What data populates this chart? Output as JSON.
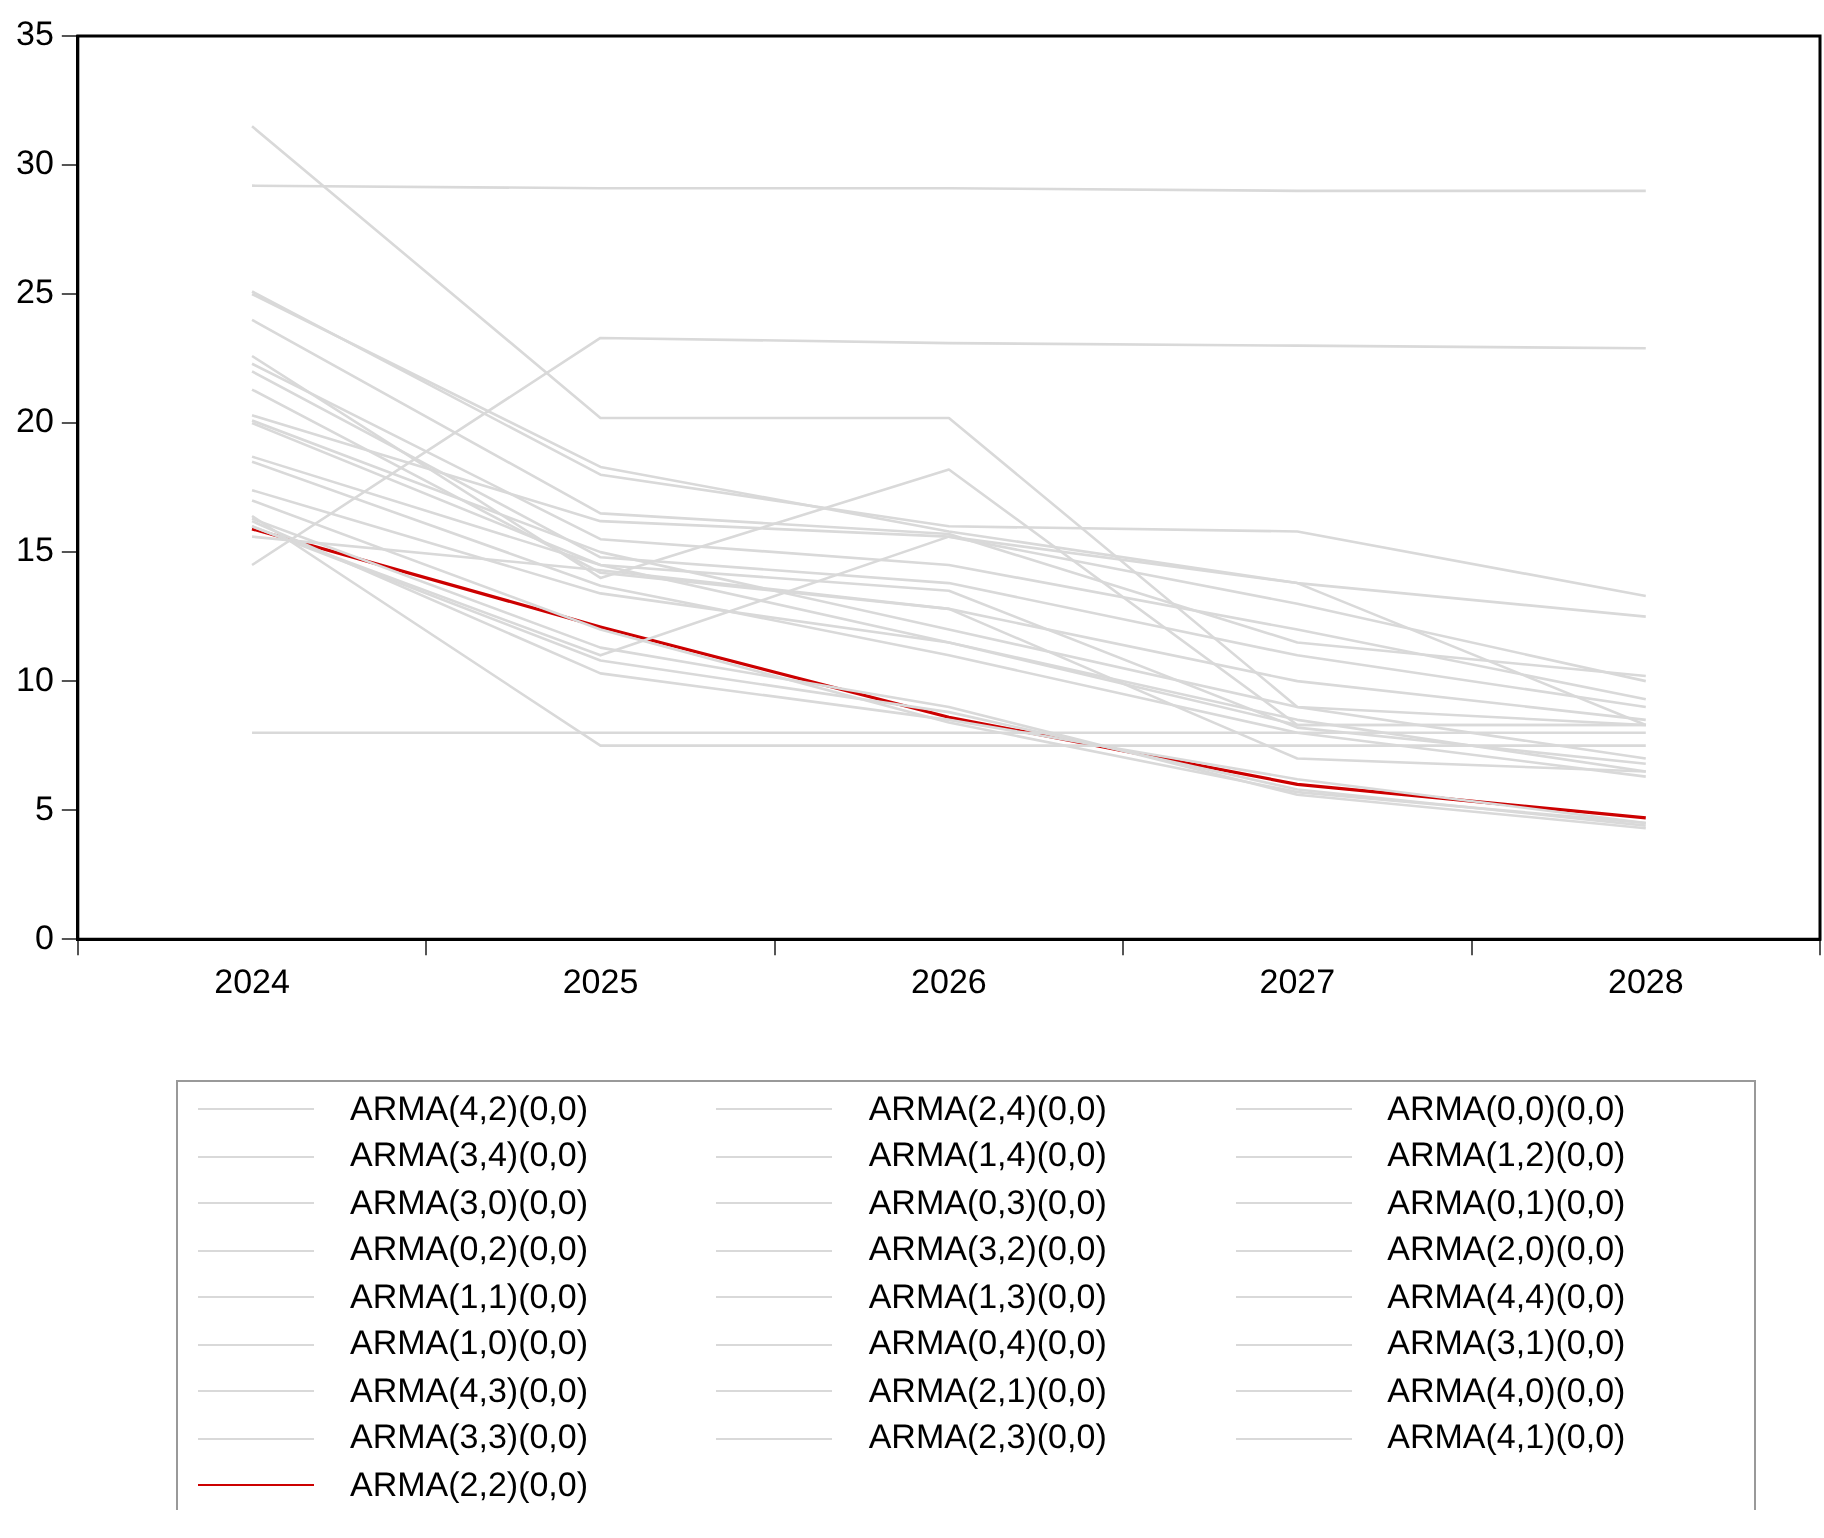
{
  "chart_data": {
    "type": "line",
    "categories": [
      "2024",
      "2025",
      "2026",
      "2027",
      "2028"
    ],
    "ylim": [
      0,
      35
    ],
    "yticks": [
      0,
      5,
      10,
      15,
      20,
      25,
      30,
      35
    ],
    "grid": false,
    "legend": "bottom",
    "marker": "none",
    "line_style": "solid",
    "series": [
      {
        "name": "ARMA(4,2)(0,0)",
        "color": "#d9d9d9",
        "values": [
          31.5,
          20.2,
          20.2,
          9.0,
          8.3
        ]
      },
      {
        "name": "ARMA(2,4)(0,0)",
        "color": "#d9d9d9",
        "values": [
          29.2,
          29.1,
          29.1,
          29.0,
          29.0
        ]
      },
      {
        "name": "ARMA(0,0)(0,0)",
        "color": "#d9d9d9",
        "values": [
          8.0,
          8.0,
          8.0,
          8.0,
          8.0
        ]
      },
      {
        "name": "ARMA(3,4)(0,0)",
        "color": "#d9d9d9",
        "values": [
          14.5,
          23.3,
          23.1,
          23.0,
          22.9
        ]
      },
      {
        "name": "ARMA(1,4)(0,0)",
        "color": "#d9d9d9",
        "values": [
          16.4,
          7.5,
          7.5,
          7.5,
          7.5
        ]
      },
      {
        "name": "ARMA(1,2)(0,0)",
        "color": "#d9d9d9",
        "values": [
          25.0,
          18.3,
          15.8,
          13.8,
          12.5
        ]
      },
      {
        "name": "ARMA(3,0)(0,0)",
        "color": "#d9d9d9",
        "values": [
          25.1,
          18.0,
          16.0,
          15.8,
          13.3
        ]
      },
      {
        "name": "ARMA(0,3)(0,0)",
        "color": "#d9d9d9",
        "values": [
          24.0,
          16.5,
          15.7,
          11.5,
          10.2
        ]
      },
      {
        "name": "ARMA(0,1)(0,0)",
        "color": "#d9d9d9",
        "values": [
          22.6,
          14.0,
          18.2,
          8.3,
          8.3
        ]
      },
      {
        "name": "ARMA(0,2)(0,0)",
        "color": "#d9d9d9",
        "values": [
          22.3,
          15.5,
          14.5,
          12.0,
          9.3
        ]
      },
      {
        "name": "ARMA(3,2)(0,0)",
        "color": "#d9d9d9",
        "values": [
          22.0,
          14.8,
          13.8,
          11.0,
          9.0
        ]
      },
      {
        "name": "ARMA(2,0)(0,0)",
        "color": "#d9d9d9",
        "values": [
          21.3,
          14.2,
          12.8,
          10.0,
          8.5
        ]
      },
      {
        "name": "ARMA(1,1)(0,0)",
        "color": "#d9d9d9",
        "values": [
          20.3,
          16.2,
          15.6,
          13.8,
          8.3
        ]
      },
      {
        "name": "ARMA(1,3)(0,0)",
        "color": "#d9d9d9",
        "values": [
          20.1,
          15.0,
          12.0,
          9.0,
          7.0
        ]
      },
      {
        "name": "ARMA(4,4)(0,0)",
        "color": "#d9d9d9",
        "values": [
          18.7,
          14.5,
          11.5,
          8.5,
          6.5
        ]
      },
      {
        "name": "ARMA(1,0)(0,0)",
        "color": "#d9d9d9",
        "values": [
          18.5,
          13.7,
          11.0,
          8.0,
          6.3
        ]
      },
      {
        "name": "ARMA(0,4)(0,0)",
        "color": "#d9d9d9",
        "values": [
          17.4,
          13.4,
          11.5,
          8.3,
          8.3
        ]
      },
      {
        "name": "ARMA(3,1)(0,0)",
        "color": "#d9d9d9",
        "values": [
          16.0,
          11.0,
          15.6,
          13.0,
          10.0
        ]
      },
      {
        "name": "ARMA(4,3)(0,0)",
        "color": "#d9d9d9",
        "values": [
          16.2,
          10.3,
          8.5,
          6.2,
          4.5
        ]
      },
      {
        "name": "ARMA(2,1)(0,0)",
        "color": "#d9d9d9",
        "values": [
          16.0,
          10.8,
          8.8,
          5.8,
          4.4
        ]
      },
      {
        "name": "ARMA(4,0)(0,0)",
        "color": "#d9d9d9",
        "values": [
          16.3,
          11.3,
          9.0,
          5.6,
          4.3
        ]
      },
      {
        "name": "ARMA(3,3)(0,0)",
        "color": "#d9d9d9",
        "values": [
          17.0,
          12.0,
          8.4,
          5.7,
          4.5
        ]
      },
      {
        "name": "ARMA(2,3)(0,0)",
        "color": "#d9d9d9",
        "values": [
          15.6,
          14.3,
          12.8,
          7.0,
          6.5
        ]
      },
      {
        "name": "ARMA(4,1)(0,0)",
        "color": "#d9d9d9",
        "values": [
          20.0,
          14.5,
          13.5,
          8.2,
          6.8
        ]
      },
      {
        "name": "ARMA(2,2)(0,0)",
        "color": "#cc0000",
        "values": [
          15.9,
          12.1,
          8.6,
          6.0,
          4.7
        ]
      }
    ]
  }
}
